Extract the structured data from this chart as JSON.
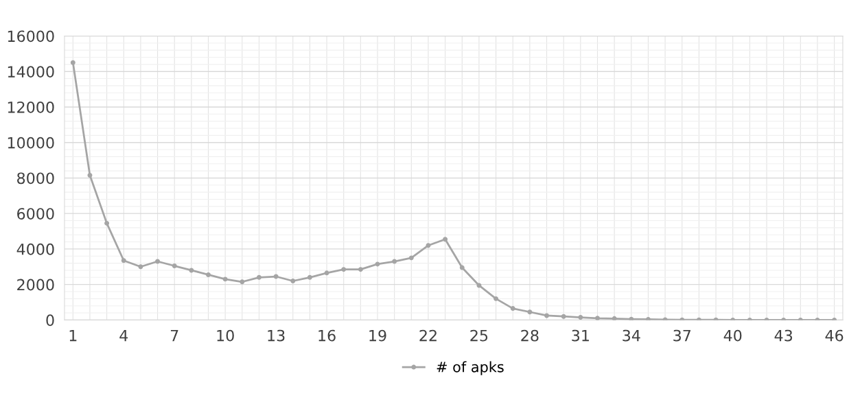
{
  "chart_data": {
    "type": "line",
    "categories": [
      "1",
      null,
      null,
      "4",
      null,
      null,
      "7",
      null,
      null,
      "10",
      null,
      null,
      "13",
      null,
      null,
      "16",
      null,
      null,
      "19",
      null,
      null,
      "22",
      null,
      null,
      "25",
      null,
      null,
      "28",
      null,
      null,
      "31",
      null,
      null,
      "34",
      null,
      null,
      "37",
      null,
      null,
      "40",
      null,
      null,
      "43",
      null,
      null,
      "46"
    ],
    "series": [
      {
        "name": "# of apks",
        "color": "#a5a5a5",
        "values": [
          14500,
          8150,
          5450,
          3350,
          3000,
          3300,
          3050,
          2800,
          2550,
          2300,
          2150,
          2400,
          2450,
          2200,
          2400,
          2650,
          2850,
          2850,
          3150,
          3300,
          3500,
          4200,
          4550,
          2950,
          1950,
          1200,
          650,
          450,
          250,
          200,
          150,
          100,
          80,
          50,
          40,
          20,
          10,
          10,
          10,
          0,
          0,
          0,
          0,
          0,
          0,
          0
        ]
      }
    ],
    "ylim": [
      0,
      16000
    ],
    "yticks": [
      0,
      2000,
      4000,
      6000,
      8000,
      10000,
      12000,
      14000,
      16000
    ],
    "grid": true,
    "legend": "bottom",
    "marker": "circle",
    "line_style": "solid"
  }
}
